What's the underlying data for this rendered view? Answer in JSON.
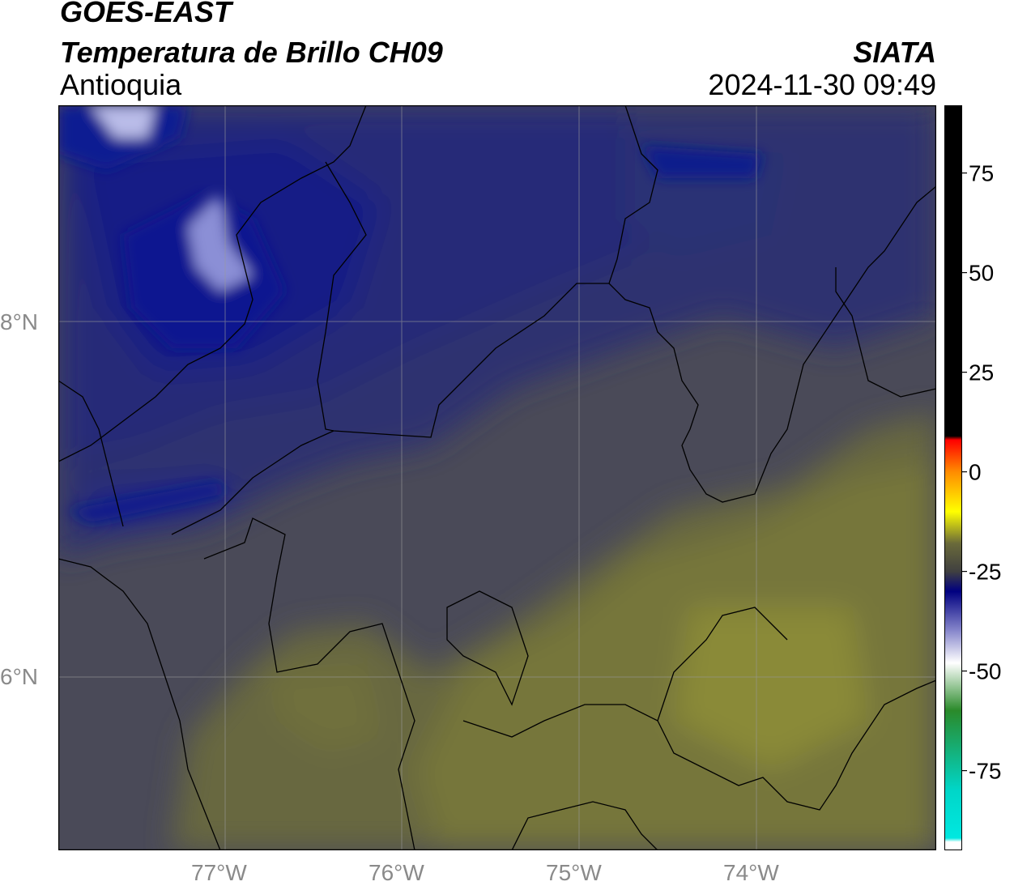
{
  "header": {
    "satellite": "GOES-EAST",
    "product": "Temperatura de Brillo CH09",
    "region": "Antioquia",
    "agency": "SIATA",
    "timestamp": "2024-11-30 09:49"
  },
  "map": {
    "lat_ticks": [
      "8°N",
      "6°N"
    ],
    "lon_ticks": [
      "77°W",
      "76°W",
      "75°W",
      "74°W"
    ],
    "colors": {
      "background_warm": "#4a4a58",
      "cold_cloud": "#232c7a",
      "very_cold": "#0a1a8c",
      "coldest": "#c8cae8",
      "warm_olive": "#7a7a3a",
      "border": "#000000",
      "grid": "#9a9a9a"
    }
  },
  "colorbar": {
    "tick_labels": [
      "75",
      "50",
      "25",
      "0",
      "-25",
      "-50",
      "-75"
    ],
    "ticks": [
      75,
      50,
      25,
      0,
      -25,
      -50,
      -75
    ],
    "range": [
      -95,
      92
    ],
    "stops": [
      {
        "value": 92,
        "color": "#000000"
      },
      {
        "value": 9,
        "color": "#000000"
      },
      {
        "value": 8,
        "color": "#ff0000"
      },
      {
        "value": 0,
        "color": "#ff8c00"
      },
      {
        "value": -10,
        "color": "#ffff00"
      },
      {
        "value": -18,
        "color": "#6a6a3a"
      },
      {
        "value": -25,
        "color": "#404040"
      },
      {
        "value": -30,
        "color": "#000080"
      },
      {
        "value": -40,
        "color": "#8888cc"
      },
      {
        "value": -48,
        "color": "#ffffff"
      },
      {
        "value": -60,
        "color": "#2a8a2a"
      },
      {
        "value": -80,
        "color": "#00d6c8"
      },
      {
        "value": -92,
        "color": "#00e8e0"
      },
      {
        "value": -93,
        "color": "#ffffff"
      }
    ]
  }
}
